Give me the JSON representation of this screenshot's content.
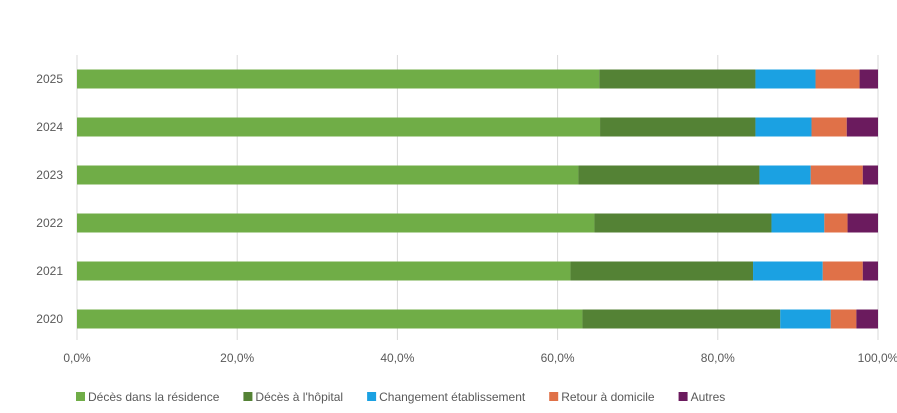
{
  "chart_data": {
    "type": "bar",
    "orientation": "horizontal",
    "stacked": "percent",
    "title": "",
    "xlabel": "",
    "ylabel": "",
    "categories": [
      "2025",
      "2024",
      "2023",
      "2022",
      "2021",
      "2020"
    ],
    "xlim": [
      0,
      100
    ],
    "x_ticks": [
      "0,0%",
      "20,0%",
      "40,0%",
      "60,0%",
      "80,0%",
      "100,0%"
    ],
    "grid": "vertical",
    "legend_position": "bottom",
    "series": [
      {
        "name": "Décès dans la résidence",
        "color": "#70AD47",
        "values": [
          65.2,
          65.3,
          62.6,
          64.6,
          61.6,
          63.1
        ]
      },
      {
        "name": "Décès à l'hôpital",
        "color": "#548235",
        "values": [
          19.5,
          19.4,
          22.6,
          22.1,
          22.8,
          24.7
        ]
      },
      {
        "name": "Changement établissement",
        "color": "#1BA1E2",
        "values": [
          7.5,
          7.0,
          6.4,
          6.6,
          8.7,
          6.3
        ]
      },
      {
        "name": "Retour à domicile",
        "color": "#E07148",
        "values": [
          5.5,
          4.4,
          6.5,
          2.9,
          5.0,
          3.2
        ]
      },
      {
        "name": "Autres",
        "color": "#6B1B5E",
        "values": [
          2.3,
          3.9,
          1.9,
          3.8,
          1.9,
          2.7
        ]
      }
    ]
  }
}
